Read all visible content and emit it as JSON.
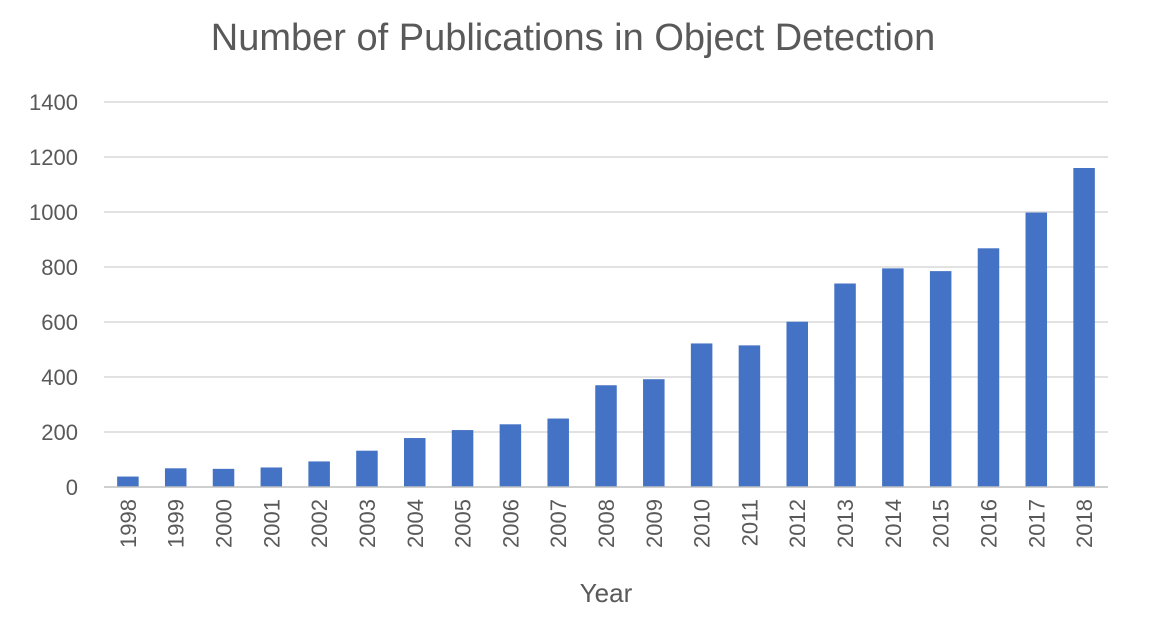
{
  "chart_data": {
    "type": "bar",
    "title": "Number of Publications in Object Detection",
    "xlabel": "Year",
    "ylabel": "",
    "categories": [
      "1998",
      "1999",
      "2000",
      "2001",
      "2002",
      "2003",
      "2004",
      "2005",
      "2006",
      "2007",
      "2008",
      "2009",
      "2010",
      "2011",
      "2012",
      "2013",
      "2014",
      "2015",
      "2016",
      "2017",
      "2018"
    ],
    "values": [
      38,
      68,
      66,
      71,
      93,
      132,
      178,
      207,
      228,
      249,
      370,
      392,
      522,
      515,
      601,
      740,
      795,
      785,
      868,
      998,
      1160
    ],
    "ylim": [
      0,
      1400
    ],
    "yticks": [
      0,
      200,
      400,
      600,
      800,
      1000,
      1200,
      1400
    ],
    "grid": true,
    "legend": "none",
    "bar_color": "#4472C4"
  }
}
